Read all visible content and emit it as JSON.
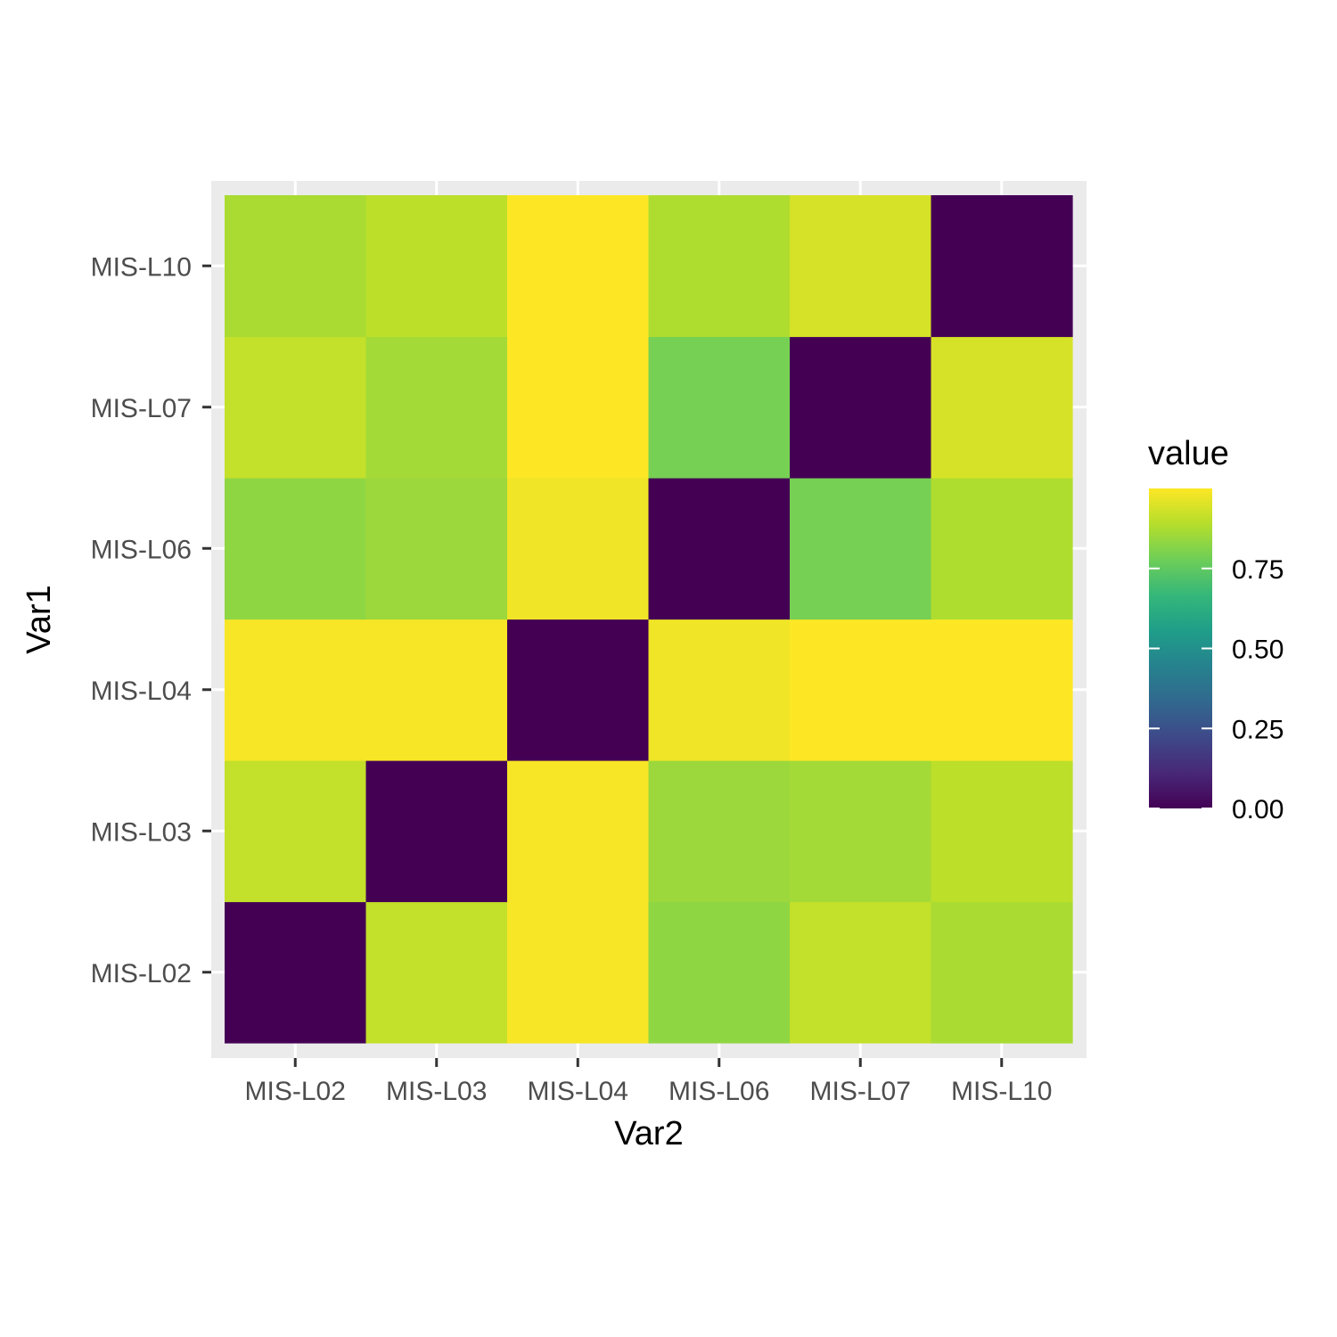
{
  "chart_data": {
    "type": "heatmap",
    "xlabel": "Var2",
    "ylabel": "Var1",
    "x_categories": [
      "MIS-L02",
      "MIS-L03",
      "MIS-L04",
      "MIS-L06",
      "MIS-L07",
      "MIS-L10"
    ],
    "y_categories": [
      "MIS-L02",
      "MIS-L03",
      "MIS-L04",
      "MIS-L06",
      "MIS-L07",
      "MIS-L10"
    ],
    "values": [
      [
        0.0,
        0.91,
        0.99,
        0.83,
        0.91,
        0.87
      ],
      [
        0.91,
        0.0,
        0.99,
        0.85,
        0.86,
        0.9
      ],
      [
        0.99,
        0.99,
        0.0,
        0.98,
        1.0,
        1.0
      ],
      [
        0.83,
        0.85,
        0.98,
        0.0,
        0.79,
        0.88
      ],
      [
        0.91,
        0.86,
        1.0,
        0.79,
        0.0,
        0.94
      ],
      [
        0.87,
        0.9,
        1.0,
        0.88,
        0.94,
        0.0
      ]
    ],
    "color_scale": "viridis",
    "value_range": [
      0.0,
      1.0
    ],
    "legend": {
      "title": "value",
      "position": "right",
      "breaks": [
        0.0,
        0.25,
        0.5,
        0.75
      ],
      "labels": [
        "0.00",
        "0.25",
        "0.50",
        "0.75"
      ]
    },
    "panel_background": "#ebebeb",
    "grid": true
  }
}
